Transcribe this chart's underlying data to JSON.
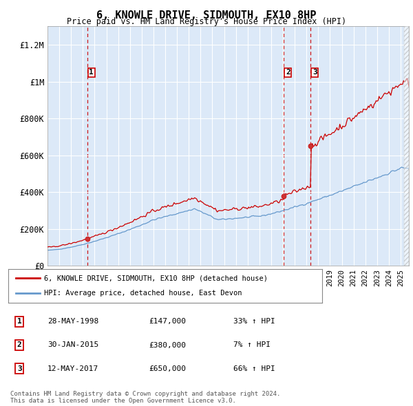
{
  "title": "6, KNOWLE DRIVE, SIDMOUTH, EX10 8HP",
  "subtitle": "Price paid vs. HM Land Registry's House Price Index (HPI)",
  "ylim": [
    0,
    1300000
  ],
  "yticks": [
    0,
    200000,
    400000,
    600000,
    800000,
    1000000,
    1200000
  ],
  "ytick_labels": [
    "£0",
    "£200K",
    "£400K",
    "£600K",
    "£800K",
    "£1M",
    "£1.2M"
  ],
  "plot_bg_color": "#dce9f8",
  "sale_dates": [
    1998.38,
    2015.08,
    2017.36
  ],
  "sale_prices": [
    147000,
    380000,
    650000
  ],
  "sale_labels": [
    "1",
    "2",
    "3"
  ],
  "dashed_line_color": "#cc0000",
  "legend_line1": "6, KNOWLE DRIVE, SIDMOUTH, EX10 8HP (detached house)",
  "legend_line2": "HPI: Average price, detached house, East Devon",
  "table_entries": [
    {
      "num": "1",
      "date": "28-MAY-1998",
      "price": "£147,000",
      "change": "33% ↑ HPI"
    },
    {
      "num": "2",
      "date": "30-JAN-2015",
      "price": "£380,000",
      "change": "7% ↑ HPI"
    },
    {
      "num": "3",
      "date": "12-MAY-2017",
      "price": "£650,000",
      "change": "66% ↑ HPI"
    }
  ],
  "footer": "Contains HM Land Registry data © Crown copyright and database right 2024.\nThis data is licensed under the Open Government Licence v3.0.",
  "red_line_color": "#cc0000",
  "blue_line_color": "#6699cc"
}
